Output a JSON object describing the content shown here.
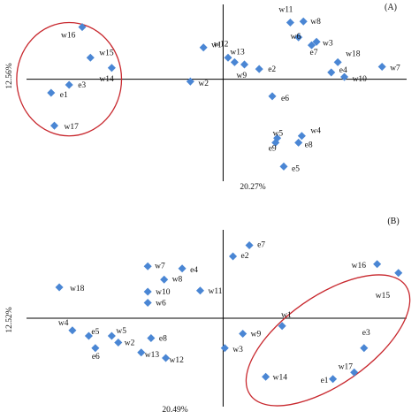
{
  "colors": {
    "marker": "#4a86d4",
    "axis": "#000000",
    "ellipse": "#c8282e",
    "text": "#111111"
  },
  "chart_data": [
    {
      "type": "scatter",
      "panel_label": "(A)",
      "xlabel": "20.27%",
      "ylabel": "12.56%",
      "xlim": [
        -6.0,
        5.6
      ],
      "ylim": [
        -4.5,
        3.3
      ],
      "legend": "none",
      "grid": false,
      "highlight": {
        "center": [
          -4.7,
          0.0
        ],
        "radii": [
          1.6,
          2.5
        ]
      },
      "points": [
        {
          "label": "w16",
          "x": -4.3,
          "y": 2.3
        },
        {
          "label": "w15",
          "x": -4.05,
          "y": 0.95
        },
        {
          "label": "w14",
          "x": -3.4,
          "y": 0.5
        },
        {
          "label": "e3",
          "x": -4.7,
          "y": -0.25
        },
        {
          "label": "e1",
          "x": -5.25,
          "y": -0.6
        },
        {
          "label": "w17",
          "x": -5.15,
          "y": -2.05
        },
        {
          "label": "w1",
          "x": -0.6,
          "y": 1.4
        },
        {
          "label": "w2",
          "x": -1.0,
          "y": -0.1
        },
        {
          "label": "w12",
          "x": 0.15,
          "y": 0.95
        },
        {
          "label": "w13",
          "x": 0.35,
          "y": 0.75
        },
        {
          "label": "w9",
          "x": 0.65,
          "y": 0.65
        },
        {
          "label": "e2",
          "x": 1.1,
          "y": 0.45
        },
        {
          "label": "e6",
          "x": 1.5,
          "y": -0.75
        },
        {
          "label": "w11",
          "x": 2.05,
          "y": 2.5
        },
        {
          "label": "w8",
          "x": 2.45,
          "y": 2.55
        },
        {
          "label": "w6",
          "x": 2.3,
          "y": 1.85
        },
        {
          "label": "w3",
          "x": 2.85,
          "y": 1.65
        },
        {
          "label": "e7",
          "x": 2.7,
          "y": 1.5
        },
        {
          "label": "w18",
          "x": 3.5,
          "y": 0.75
        },
        {
          "label": "e4",
          "x": 3.3,
          "y": 0.3
        },
        {
          "label": "w10",
          "x": 3.7,
          "y": 0.1
        },
        {
          "label": "w7",
          "x": 4.85,
          "y": 0.55
        },
        {
          "label": "w5",
          "x": 1.65,
          "y": -2.6
        },
        {
          "label": "w4",
          "x": 2.4,
          "y": -2.5
        },
        {
          "label": "e8",
          "x": 2.3,
          "y": -2.8
        },
        {
          "label": "e9",
          "x": 1.6,
          "y": -2.8
        },
        {
          "label": "e5",
          "x": 1.85,
          "y": -3.85
        }
      ]
    },
    {
      "type": "scatter",
      "panel_label": "(B)",
      "xlabel": "20.49%",
      "ylabel": "12.52%",
      "xlim": [
        -6.0,
        5.6
      ],
      "ylim": [
        -4.0,
        4.0
      ],
      "legend": "none",
      "grid": false,
      "highlight": {
        "center": [
          3.2,
          -1.0
        ],
        "radii": [
          2.9,
          2.0
        ],
        "rotation_deg": -35
      },
      "points": [
        {
          "label": "e7",
          "x": 0.8,
          "y": 3.3
        },
        {
          "label": "e2",
          "x": 0.3,
          "y": 2.8
        },
        {
          "label": "w7",
          "x": -2.3,
          "y": 2.35
        },
        {
          "label": "e4",
          "x": -1.25,
          "y": 2.25
        },
        {
          "label": "w8",
          "x": -1.8,
          "y": 1.75
        },
        {
          "label": "w18",
          "x": -5.0,
          "y": 1.4
        },
        {
          "label": "w10",
          "x": -2.3,
          "y": 1.2
        },
        {
          "label": "w11",
          "x": -0.7,
          "y": 1.25
        },
        {
          "label": "w6",
          "x": -2.3,
          "y": 0.7
        },
        {
          "label": "w16",
          "x": 4.7,
          "y": 2.45
        },
        {
          "label": "w15",
          "x": 5.35,
          "y": 2.05
        },
        {
          "label": "w1",
          "x": 1.8,
          "y": -0.35
        },
        {
          "label": "w4",
          "x": -4.6,
          "y": -0.55
        },
        {
          "label": "e5",
          "x": -4.1,
          "y": -0.8
        },
        {
          "label": "w5",
          "x": -3.4,
          "y": -0.8
        },
        {
          "label": "w2",
          "x": -3.2,
          "y": -1.1
        },
        {
          "label": "e8",
          "x": -2.2,
          "y": -0.9
        },
        {
          "label": "e6",
          "x": -3.9,
          "y": -1.35
        },
        {
          "label": "w13",
          "x": -2.5,
          "y": -1.55
        },
        {
          "label": "w12",
          "x": -1.75,
          "y": -1.8
        },
        {
          "label": "w9",
          "x": 0.6,
          "y": -0.7
        },
        {
          "label": "w3",
          "x": 0.05,
          "y": -1.35
        },
        {
          "label": "e3",
          "x": 4.3,
          "y": -1.35
        },
        {
          "label": "w17",
          "x": 4.0,
          "y": -2.45
        },
        {
          "label": "e1",
          "x": 3.35,
          "y": -2.75
        },
        {
          "label": "w14",
          "x": 1.3,
          "y": -2.65
        }
      ]
    }
  ]
}
